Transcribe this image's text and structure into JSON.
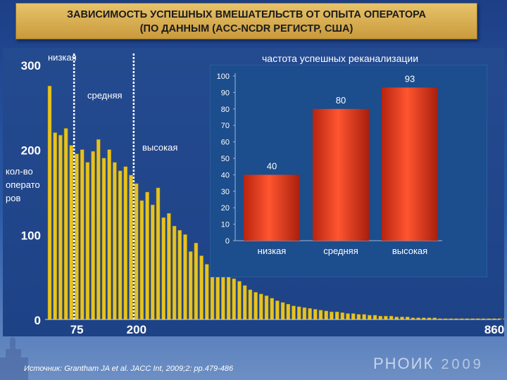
{
  "title": {
    "line1": "ЗАВИСИМОСТЬ УСПЕШНЫХ ВМЕШАТЕЛЬСТВ ОТ ОПЫТА ОПЕРАТОРА",
    "line2": "(ПО ДАННЫМ (ACC-NCDR РЕГИСТР, США)"
  },
  "citation": "Источник: Grantham JA et al. JACC Int, 2009;2: pp.479-486",
  "logo": {
    "text": "РНОИК",
    "year": "2009"
  },
  "colors": {
    "bar_yellow": "#e6c320",
    "bar_red": "#e8401f",
    "inset_bg": "#1c4d8c",
    "line_white": "#ffffff"
  },
  "chart_data": [
    {
      "type": "bar",
      "ylabel": "кол-во операто ров",
      "yticks": [
        0,
        100,
        200,
        300
      ],
      "ylim": [
        0,
        300
      ],
      "x_tick_labels": [
        "75",
        "200",
        "860"
      ],
      "regions": [
        {
          "label": "низкая"
        },
        {
          "label": "средняя"
        },
        {
          "label": "высокая"
        }
      ],
      "thresholds": [
        75,
        200
      ],
      "values": [
        275,
        220,
        217,
        225,
        205,
        195,
        200,
        185,
        198,
        212,
        190,
        200,
        185,
        175,
        180,
        170,
        160,
        140,
        150,
        135,
        155,
        120,
        125,
        110,
        105,
        100,
        80,
        90,
        75,
        65,
        60,
        62,
        55,
        50,
        48,
        45,
        40,
        35,
        32,
        30,
        28,
        25,
        22,
        20,
        18,
        16,
        15,
        14,
        13,
        12,
        11,
        10,
        9,
        9,
        8,
        7,
        7,
        6,
        6,
        5,
        5,
        4,
        4,
        4,
        3,
        3,
        3,
        2,
        2,
        2,
        2,
        2,
        1,
        1,
        1,
        1,
        1,
        1,
        1,
        1,
        1,
        1,
        1,
        1,
        1,
        1
      ]
    },
    {
      "type": "bar",
      "title": "частота успешных реканализации",
      "categories": [
        "низкая",
        "средняя",
        "высокая"
      ],
      "values": [
        40,
        80,
        93
      ],
      "ylim": [
        0,
        100
      ],
      "yticks": [
        0,
        10,
        20,
        30,
        40,
        50,
        60,
        70,
        80,
        90,
        100
      ]
    }
  ]
}
